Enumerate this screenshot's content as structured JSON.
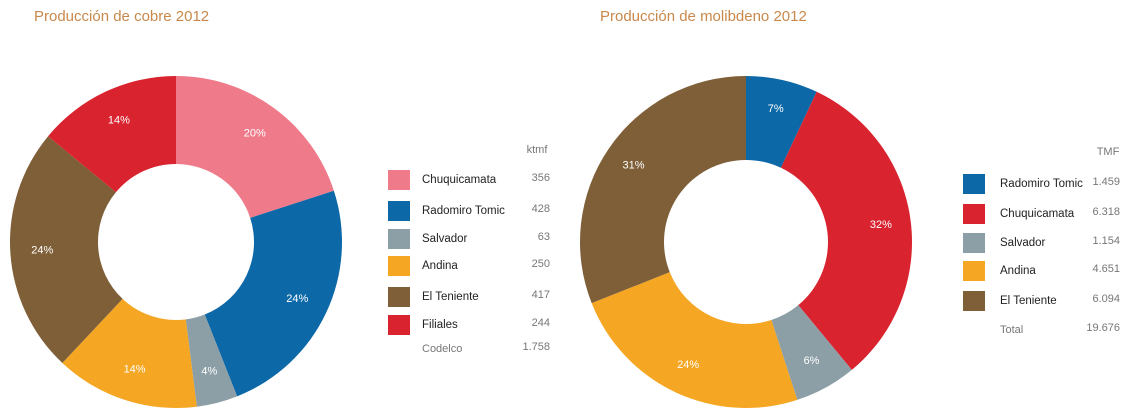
{
  "chart_data": [
    {
      "type": "pie",
      "title": "Producción  de cobre  2012",
      "categories": [
        "Chuquicamata",
        "Radomiro Tomic",
        "Salvador",
        "Andina",
        "El Teniente",
        "Filiales"
      ],
      "values": [
        20,
        24,
        4,
        14,
        24,
        14
      ],
      "value_labels": [
        "20%",
        "24%",
        "4%",
        "14%",
        "24%",
        "14%"
      ],
      "colors": [
        "#ef7b8a",
        "#0d68a8",
        "#8c9fa6",
        "#f5a623",
        "#7f5f38",
        "#d9232f"
      ],
      "unit": "ktmf",
      "amounts": [
        356,
        428,
        63,
        250,
        417,
        244
      ],
      "total_label": "Codelco",
      "total": {
        "value": 1758,
        "label": "1.758"
      }
    },
    {
      "type": "pie",
      "title": "Producción  de molibdeno 2012",
      "categories": [
        "Radomiro Tomic",
        "Chuquicamata",
        "Salvador",
        "Andina",
        "El Teniente"
      ],
      "values": [
        7,
        32,
        6,
        24,
        31
      ],
      "value_labels": [
        "7%",
        "32%",
        "6%",
        "24%",
        "31%"
      ],
      "colors": [
        "#0d68a8",
        "#d9232f",
        "#8c9fa6",
        "#f5a623",
        "#7f5f38"
      ],
      "unit": "TMF",
      "amounts": [
        1459,
        6318,
        1154,
        4651,
        6094
      ],
      "amount_labels": [
        "1.459",
        "6.318",
        "1.154",
        "4.651",
        "6.094"
      ],
      "total_label": "Total",
      "total": {
        "value": 19676,
        "label": "19.676"
      }
    }
  ]
}
